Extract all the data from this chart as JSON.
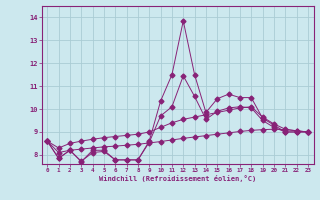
{
  "xlabel": "Windchill (Refroidissement éolien,°C)",
  "background_color": "#cce8ee",
  "grid_color": "#aaccd4",
  "line_color": "#882277",
  "line1": [
    8.6,
    7.85,
    8.2,
    7.7,
    8.2,
    8.2,
    7.78,
    7.78,
    7.78,
    8.6,
    10.35,
    11.5,
    13.85,
    11.5,
    9.85,
    10.45,
    10.65,
    10.5,
    10.5,
    9.6,
    9.3,
    9.0,
    9.0,
    9.0
  ],
  "line2": [
    8.6,
    7.85,
    8.2,
    7.72,
    8.1,
    8.15,
    7.78,
    7.78,
    7.78,
    8.55,
    9.7,
    10.1,
    11.45,
    10.55,
    9.55,
    9.9,
    10.05,
    10.1,
    10.05,
    9.5,
    9.2,
    9.0,
    9.0,
    9.0
  ],
  "line3": [
    8.6,
    8.3,
    8.5,
    8.6,
    8.68,
    8.75,
    8.8,
    8.85,
    8.9,
    9.0,
    9.2,
    9.4,
    9.55,
    9.65,
    9.75,
    9.85,
    9.95,
    10.05,
    10.1,
    9.65,
    9.35,
    9.12,
    9.05,
    9.0
  ],
  "line4": [
    8.6,
    8.1,
    8.2,
    8.25,
    8.3,
    8.35,
    8.38,
    8.42,
    8.46,
    8.52,
    8.58,
    8.65,
    8.72,
    8.78,
    8.84,
    8.9,
    8.96,
    9.02,
    9.07,
    9.1,
    9.12,
    9.1,
    9.05,
    9.0
  ],
  "yticks": [
    8,
    9,
    10,
    11,
    12,
    13,
    14
  ],
  "xticks": [
    0,
    1,
    2,
    3,
    4,
    5,
    6,
    7,
    8,
    9,
    10,
    11,
    12,
    13,
    14,
    15,
    16,
    17,
    18,
    19,
    20,
    21,
    22,
    23
  ],
  "ylim_lo": 7.6,
  "ylim_hi": 14.5
}
